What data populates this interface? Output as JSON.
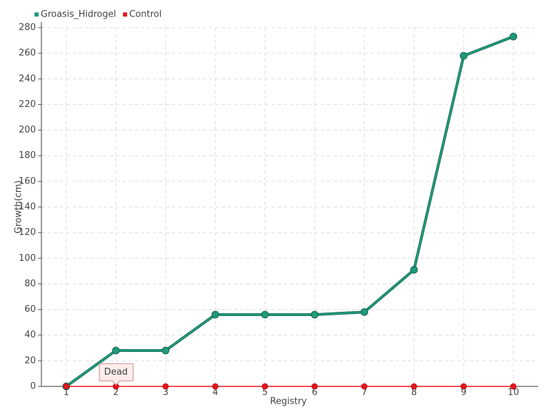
{
  "chart_data": {
    "type": "line",
    "x_label": "Registry",
    "y_label": "Growth(cm)",
    "categories": [
      "1",
      "2",
      "3",
      "4",
      "5",
      "6",
      "7",
      "8",
      "9",
      "10"
    ],
    "series": [
      {
        "name": "Groasis_Hidrogel",
        "color": "#1f9a7b",
        "values": [
          0,
          28,
          28,
          56,
          56,
          56,
          58,
          91,
          258,
          273
        ]
      },
      {
        "name": "Control",
        "color": "#e8141e",
        "values": [
          0,
          0,
          0,
          0,
          0,
          0,
          0,
          0,
          0,
          0
        ]
      }
    ],
    "annotations": [
      {
        "text": "Dead",
        "x": "2",
        "y": 0
      }
    ],
    "ylim": [
      0,
      280
    ],
    "yticks": [
      0,
      20,
      40,
      60,
      80,
      100,
      120,
      140,
      160,
      180,
      200,
      220,
      240,
      260,
      280
    ],
    "grid": true,
    "legend": "top-left"
  }
}
